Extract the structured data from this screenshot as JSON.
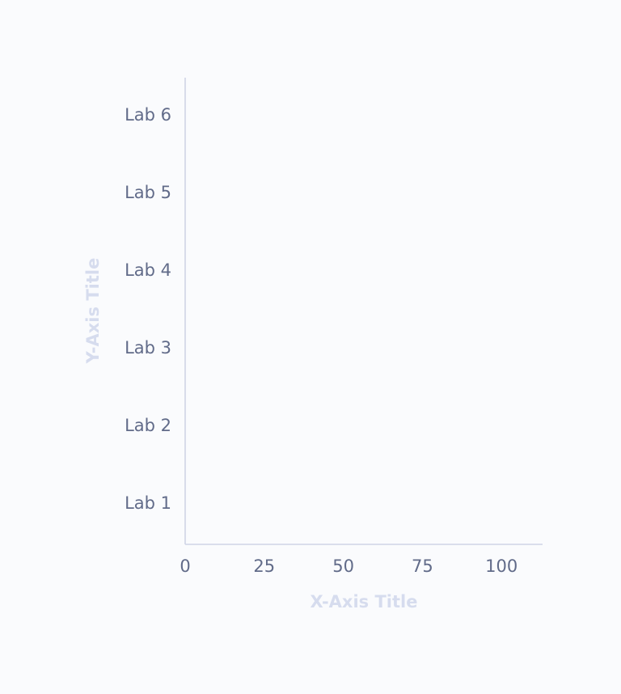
{
  "chart_data": {
    "type": "bar",
    "orientation": "horizontal",
    "categories": [
      "Lab 1",
      "Lab 2",
      "Lab 3",
      "Lab 4",
      "Lab 5",
      "Lab 6"
    ],
    "series": [],
    "x_ticks": [
      "0",
      "25",
      "50",
      "75",
      "100"
    ],
    "xlabel": "X-Axis Title",
    "ylabel": "Y-Axis Title",
    "xlim": [
      0,
      113
    ],
    "grid": false,
    "colors": {
      "background": "#fafbfd",
      "axis_line": "#d0d5e6",
      "tick_text": "#616b89",
      "axis_title": "#d6dcee"
    }
  }
}
